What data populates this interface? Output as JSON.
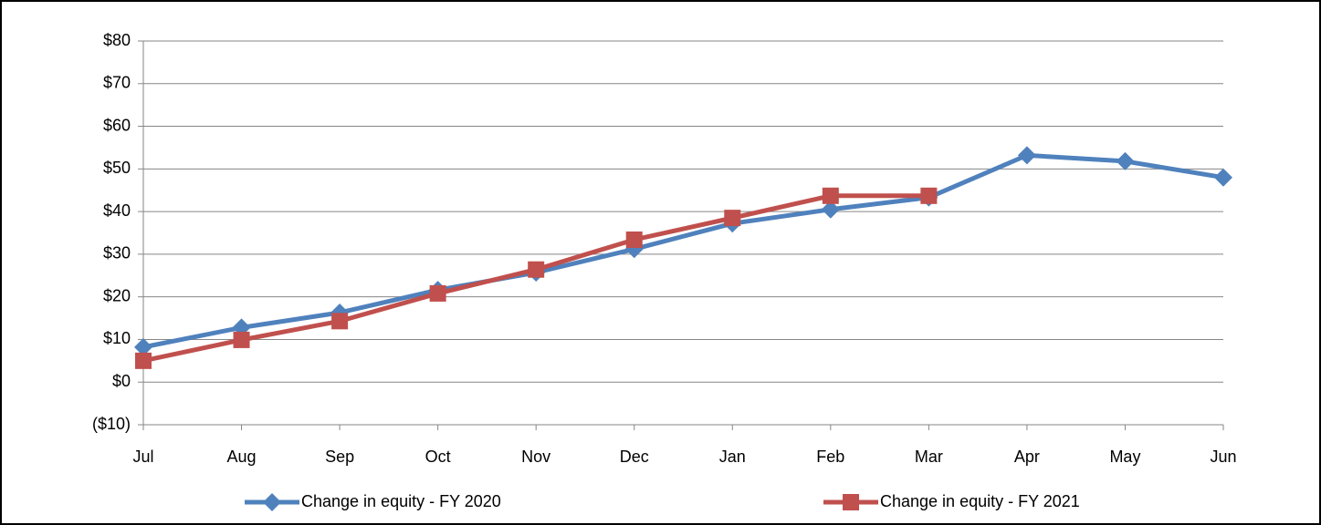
{
  "chart_data": {
    "type": "line",
    "categories": [
      "Jul",
      "Aug",
      "Sep",
      "Oct",
      "Nov",
      "Dec",
      "Jan",
      "Feb",
      "Mar",
      "Apr",
      "May",
      "Jun"
    ],
    "series": [
      {
        "name": "Change in equity - FY 2020",
        "color": "#4f81bd",
        "marker": "diamond",
        "values": [
          8.2,
          12.8,
          16.3,
          21.6,
          25.7,
          31.2,
          37.2,
          40.5,
          43.3,
          53.2,
          51.8,
          48.0
        ]
      },
      {
        "name": "Change in equity - FY 2021",
        "color": "#c0504d",
        "marker": "square",
        "values": [
          5.0,
          9.9,
          14.3,
          20.8,
          26.4,
          33.4,
          38.5,
          43.7,
          43.7,
          null,
          null,
          null
        ]
      }
    ],
    "ylim": [
      -10,
      80
    ],
    "yticks": [
      {
        "value": -10,
        "label": "($10)"
      },
      {
        "value": 0,
        "label": "$0"
      },
      {
        "value": 10,
        "label": "$10"
      },
      {
        "value": 20,
        "label": "$20"
      },
      {
        "value": 30,
        "label": "$30"
      },
      {
        "value": 40,
        "label": "$40"
      },
      {
        "value": 50,
        "label": "$50"
      },
      {
        "value": 60,
        "label": "$60"
      },
      {
        "value": 70,
        "label": "$70"
      },
      {
        "value": 80,
        "label": "$80"
      }
    ],
    "grid": true,
    "legend": "bottom"
  }
}
